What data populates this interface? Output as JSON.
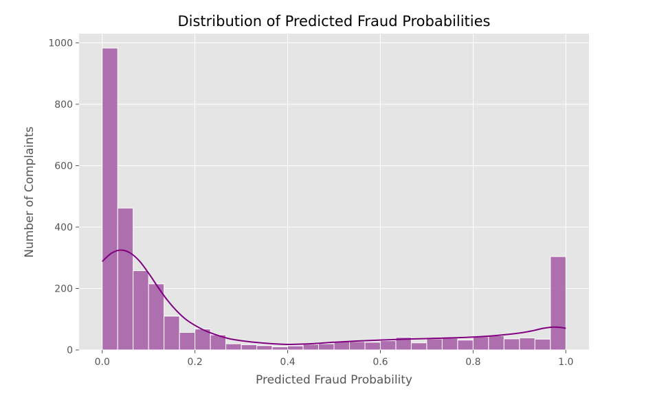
{
  "chart_data": {
    "type": "bar",
    "title": "Distribution of Predicted Fraud Probabilities",
    "xlabel": "Predicted Fraud Probability",
    "ylabel": "Number of Complaints",
    "xlim": [
      -0.05,
      1.05
    ],
    "ylim": [
      0,
      1030
    ],
    "xticks": [
      0.0,
      0.2,
      0.4,
      0.6,
      0.8,
      1.0
    ],
    "xtick_labels": [
      "0.0",
      "0.2",
      "0.4",
      "0.6",
      "0.8",
      "1.0"
    ],
    "yticks": [
      0,
      200,
      400,
      600,
      800,
      1000
    ],
    "ytick_labels": [
      "0",
      "200",
      "400",
      "600",
      "800",
      "1000"
    ],
    "grid": true,
    "bar_color": "#a55aa5",
    "curve_color": "#800080",
    "background": "#e5e5e5",
    "bins": {
      "start": 0.0,
      "end": 1.0,
      "count": 30,
      "values": [
        983,
        462,
        258,
        215,
        110,
        57,
        68,
        49,
        20,
        17,
        14,
        10,
        13,
        18,
        20,
        28,
        27,
        25,
        30,
        41,
        23,
        36,
        38,
        32,
        43,
        46,
        36,
        39,
        35,
        304
      ]
    },
    "kde": {
      "x": [
        0.0,
        0.02,
        0.04,
        0.06,
        0.08,
        0.1,
        0.12,
        0.14,
        0.16,
        0.18,
        0.2,
        0.22,
        0.24,
        0.27,
        0.3,
        0.35,
        0.4,
        0.45,
        0.5,
        0.55,
        0.6,
        0.65,
        0.7,
        0.75,
        0.8,
        0.85,
        0.9,
        0.93,
        0.95,
        0.97,
        0.99,
        1.0
      ],
      "y": [
        288,
        315,
        325,
        316,
        290,
        250,
        205,
        163,
        128,
        100,
        80,
        64,
        52,
        38,
        30,
        22,
        18,
        20,
        25,
        29,
        32,
        35,
        37,
        39,
        42,
        47,
        55,
        63,
        70,
        74,
        73,
        70
      ]
    }
  }
}
